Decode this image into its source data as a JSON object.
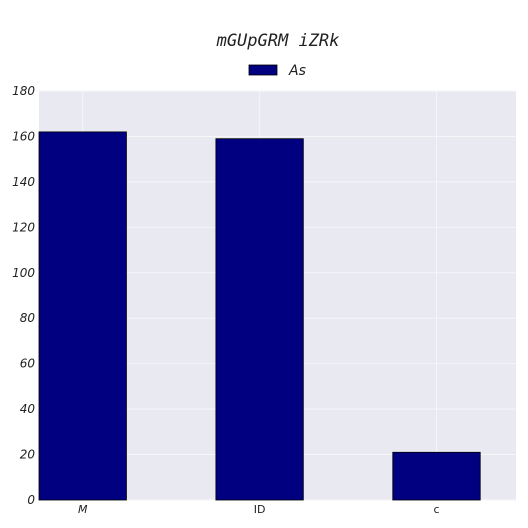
{
  "chart_data": {
    "type": "bar",
    "title": "mGUpGRM iZRk",
    "xlabel": "",
    "ylabel": "",
    "categories": [
      "M",
      "ID",
      "c"
    ],
    "category_italic": [
      true,
      false,
      false
    ],
    "series": [
      {
        "name": "As",
        "values": [
          162,
          159,
          21
        ],
        "color": "#000080"
      }
    ],
    "ylim": [
      0,
      180
    ],
    "yticks": [
      0,
      20,
      40,
      60,
      80,
      100,
      120,
      140,
      160,
      180
    ],
    "grid": true,
    "legend_position": "top-center",
    "colors": {
      "plot_background": "#e9e9f2",
      "grid": "#f6f6f9",
      "bar_edge": "#000000"
    }
  }
}
